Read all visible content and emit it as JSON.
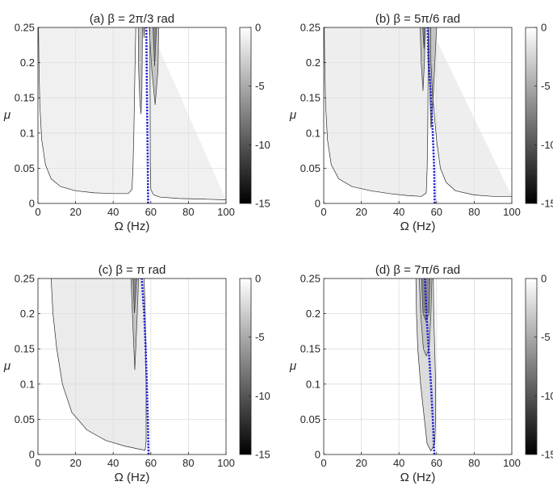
{
  "chart_data": [
    {
      "type": "contour",
      "panel_label": "(a)",
      "title": "(a) β = 2π/3 rad",
      "xlabel": "Ω (Hz)",
      "ylabel": "μ",
      "xlim": [
        0,
        100
      ],
      "ylim": [
        0,
        0.25
      ],
      "xticks": [
        "0",
        "20",
        "40",
        "60",
        "80",
        "100"
      ],
      "yticks": [
        "0",
        "0.05",
        "0.1",
        "0.15",
        "0.2",
        "0.25"
      ],
      "colorbar": {
        "range": [
          -15,
          0
        ],
        "ticks": [
          "0",
          "-5",
          "-10",
          "-15"
        ],
        "colormap": "gray"
      },
      "grid": true,
      "region_fill": "#f0f0f0",
      "contours": [
        {
          "level": -1,
          "points": [
            [
              0.3,
              0.25
            ],
            [
              0.5,
              0.2
            ],
            [
              1,
              0.14
            ],
            [
              2,
              0.09
            ],
            [
              4,
              0.055
            ],
            [
              7,
              0.035
            ],
            [
              12,
              0.024
            ],
            [
              20,
              0.018
            ],
            [
              30,
              0.015
            ],
            [
              40,
              0.014
            ],
            [
              48,
              0.014
            ],
            [
              50,
              0.02
            ],
            [
              50.5,
              0.05
            ],
            [
              51,
              0.1
            ],
            [
              51.5,
              0.18
            ],
            [
              52,
              0.25
            ]
          ]
        },
        {
          "level": -1,
          "points": [
            [
              59.5,
              0.25
            ],
            [
              59.6,
              0.15
            ],
            [
              59.7,
              0.06
            ],
            [
              60,
              0.02
            ],
            [
              61.5,
              0.012
            ],
            [
              65,
              0.009
            ],
            [
              75,
              0.007
            ],
            [
              90,
              0.006
            ],
            [
              100,
              0.005
            ]
          ]
        },
        {
          "level": -3,
          "points": [
            [
              53.3,
              0.25
            ],
            [
              53.5,
              0.19
            ],
            [
              54.2,
              0.145
            ],
            [
              54.8,
              0.127
            ],
            [
              55.3,
              0.16
            ],
            [
              55.6,
              0.25
            ]
          ]
        },
        {
          "level": -3,
          "points": [
            [
              59.2,
              0.25
            ],
            [
              60.5,
              0.19
            ],
            [
              62.3,
              0.14
            ],
            [
              63.8,
              0.19
            ],
            [
              64.2,
              0.25
            ]
          ]
        },
        {
          "level": -6,
          "points": [
            [
              56.2,
              0.25
            ],
            [
              56.4,
              0.235
            ],
            [
              56.7,
              0.25
            ]
          ]
        },
        {
          "level": -6,
          "points": [
            [
              61.2,
              0.25
            ],
            [
              62,
              0.195
            ],
            [
              63,
              0.25
            ]
          ]
        }
      ],
      "resonance_line": {
        "color": "#1f1fd6",
        "x": [
          58.6,
          58.4,
          58.2,
          58.0,
          57.6
        ],
        "y": [
          0,
          0.05,
          0.1,
          0.15,
          0.25
        ]
      }
    },
    {
      "type": "contour",
      "panel_label": "(b)",
      "title": "(b) β = 5π/6 rad",
      "xlabel": "Ω (Hz)",
      "ylabel": "μ",
      "xlim": [
        0,
        100
      ],
      "ylim": [
        0,
        0.25
      ],
      "xticks": [
        "0",
        "20",
        "40",
        "60",
        "80",
        "100"
      ],
      "yticks": [
        "0",
        "0.05",
        "0.1",
        "0.15",
        "0.2",
        "0.25"
      ],
      "colorbar": {
        "range": [
          -15,
          0
        ],
        "ticks": [
          "0",
          "-5",
          "-10",
          "-15"
        ],
        "colormap": "gray"
      },
      "grid": true,
      "region_fill": "#eeeeee",
      "contours": [
        {
          "level": -1,
          "points": [
            [
              0.3,
              0.25
            ],
            [
              0.5,
              0.2
            ],
            [
              1,
              0.14
            ],
            [
              2,
              0.09
            ],
            [
              4,
              0.055
            ],
            [
              8,
              0.035
            ],
            [
              15,
              0.024
            ],
            [
              25,
              0.018
            ],
            [
              35,
              0.014
            ],
            [
              45,
              0.011
            ],
            [
              52,
              0.01
            ],
            [
              54.5,
              0.015
            ],
            [
              55,
              0.05
            ],
            [
              55.3,
              0.1
            ],
            [
              55.5,
              0.18
            ],
            [
              55.7,
              0.25
            ]
          ]
        },
        {
          "level": -1,
          "points": [
            [
              56.8,
              0.25
            ],
            [
              57,
              0.2
            ],
            [
              58,
              0.15
            ],
            [
              60,
              0.09
            ],
            [
              62,
              0.05
            ],
            [
              65,
              0.03
            ],
            [
              70,
              0.018
            ],
            [
              80,
              0.012
            ],
            [
              90,
              0.01
            ],
            [
              100,
              0.01
            ]
          ]
        },
        {
          "level": -3,
          "points": [
            [
              51.3,
              0.25
            ],
            [
              51.8,
              0.2
            ],
            [
              52.8,
              0.16
            ],
            [
              53.5,
              0.2
            ],
            [
              54,
              0.25
            ]
          ]
        },
        {
          "level": -3,
          "points": [
            [
              55.8,
              0.25
            ],
            [
              56.5,
              0.15
            ],
            [
              57,
              0.107
            ],
            [
              58,
              0.14
            ],
            [
              60,
              0.25
            ]
          ]
        },
        {
          "level": -6,
          "points": [
            [
              52.6,
              0.25
            ],
            [
              53.3,
              0.22
            ],
            [
              54,
              0.25
            ]
          ]
        }
      ],
      "resonance_line": {
        "color": "#1f1fd6",
        "x": [
          59.0,
          58.7,
          58.0,
          57.0,
          55.8,
          55.2
        ],
        "y": [
          0,
          0.05,
          0.1,
          0.15,
          0.2,
          0.25
        ]
      }
    },
    {
      "type": "contour",
      "panel_label": "(c)",
      "title": "(c) β = π rad",
      "xlabel": "Ω (Hz)",
      "ylabel": "μ",
      "xlim": [
        0,
        100
      ],
      "ylim": [
        0,
        0.25
      ],
      "xticks": [
        "0",
        "20",
        "40",
        "60",
        "80",
        "100"
      ],
      "yticks": [
        "0",
        "0.05",
        "0.1",
        "0.15",
        "0.2",
        "0.25"
      ],
      "colorbar": {
        "range": [
          -15,
          0
        ],
        "ticks": [
          "0",
          "-5",
          "-10",
          "-15"
        ],
        "colormap": "gray"
      },
      "grid": true,
      "region_fill": "#ebebeb",
      "contours": [
        {
          "level": -1,
          "points": [
            [
              7,
              0.25
            ],
            [
              8,
              0.2
            ],
            [
              10,
              0.15
            ],
            [
              13,
              0.1
            ],
            [
              18,
              0.06
            ],
            [
              26,
              0.035
            ],
            [
              36,
              0.02
            ],
            [
              46,
              0.012
            ],
            [
              53,
              0.008
            ],
            [
              57,
              0.006
            ],
            [
              57.5,
              0.02
            ],
            [
              57.5,
              0.1
            ],
            [
              57,
              0.2
            ],
            [
              56.5,
              0.25
            ]
          ]
        },
        {
          "level": -3,
          "points": [
            [
              49.5,
              0.25
            ],
            [
              50.5,
              0.18
            ],
            [
              51.5,
              0.12
            ],
            [
              52.5,
              0.18
            ],
            [
              53.5,
              0.25
            ]
          ]
        },
        {
          "level": -6,
          "points": [
            [
              50.5,
              0.25
            ],
            [
              51.3,
              0.2
            ],
            [
              52.5,
              0.25
            ]
          ]
        }
      ],
      "resonance_line": {
        "color": "#1f1fd6",
        "x": [
          58.8,
          58.4,
          57.9,
          57.3,
          56.5,
          55.2
        ],
        "y": [
          0,
          0.05,
          0.1,
          0.15,
          0.2,
          0.25
        ]
      }
    },
    {
      "type": "contour",
      "panel_label": "(d)",
      "title": "(d) β = 7π/6 rad",
      "xlabel": "Ω (Hz)",
      "ylabel": "μ",
      "xlim": [
        0,
        100
      ],
      "ylim": [
        0,
        0.25
      ],
      "xticks": [
        "0",
        "20",
        "40",
        "60",
        "80",
        "100"
      ],
      "yticks": [
        "0",
        "0.05",
        "0.1",
        "0.15",
        "0.2",
        "0.25"
      ],
      "colorbar": {
        "range": [
          -15,
          0
        ],
        "ticks": [
          "0",
          "-5",
          "-10",
          "-15"
        ],
        "colormap": "gray"
      },
      "grid": true,
      "region_fill": "#dcdcdc",
      "contours": [
        {
          "level": -1,
          "points": [
            [
              49,
              0.25
            ],
            [
              49.3,
              0.2
            ],
            [
              50,
              0.15
            ],
            [
              51.5,
              0.1
            ],
            [
              53.5,
              0.05
            ],
            [
              55,
              0.015
            ],
            [
              57,
              0.005
            ],
            [
              59,
              0.015
            ],
            [
              59.5,
              0.05
            ],
            [
              59.5,
              0.1
            ],
            [
              59,
              0.15
            ],
            [
              58.5,
              0.2
            ],
            [
              58.3,
              0.25
            ]
          ]
        },
        {
          "level": -3,
          "points": [
            [
              50.8,
              0.25
            ],
            [
              51.5,
              0.2
            ],
            [
              53,
              0.15
            ],
            [
              54.5,
              0.14
            ],
            [
              56,
              0.15
            ],
            [
              57,
              0.2
            ],
            [
              57.5,
              0.25
            ]
          ]
        },
        {
          "level": -6,
          "points": [
            [
              52,
              0.25
            ],
            [
              52.8,
              0.2
            ],
            [
              54.3,
              0.19
            ],
            [
              56,
              0.2
            ],
            [
              56.5,
              0.25
            ]
          ]
        }
      ],
      "resonance_line": {
        "color": "#1f1fd6",
        "x": [
          58.8,
          58.0,
          57.0,
          55.8,
          54.6,
          53.8
        ],
        "y": [
          0,
          0.05,
          0.1,
          0.15,
          0.2,
          0.25
        ]
      }
    }
  ]
}
